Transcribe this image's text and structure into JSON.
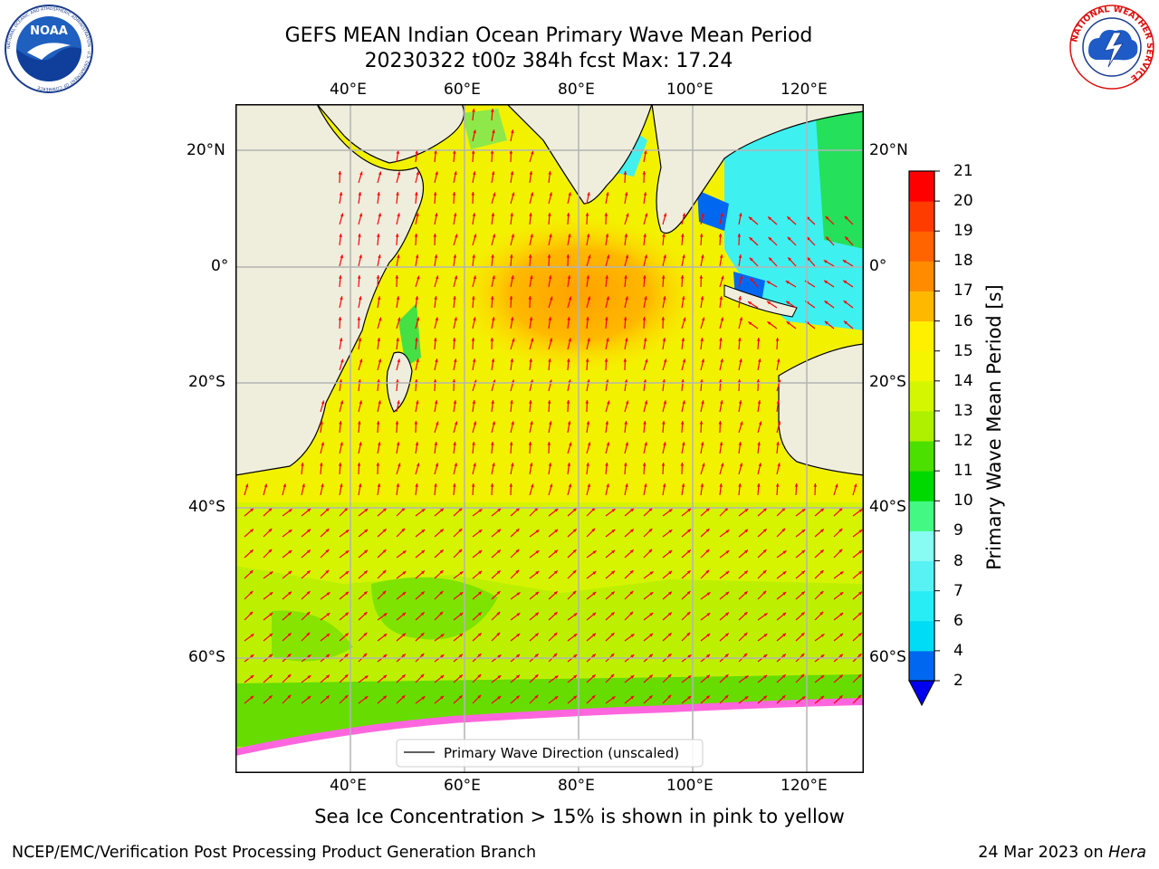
{
  "header": {
    "title_line1": "GEFS MEAN Indian Ocean Primary Wave Mean Period",
    "title_line2": "20230322 t00z 384h fcst   Max: 17.24"
  },
  "logos": {
    "left": {
      "name": "noaa-logo",
      "text": "NOAA",
      "ring_text": "NATIONAL OCEANIC AND ATMOSPHERIC ADMINISTRATION · U.S. DEPARTMENT OF COMMERCE"
    },
    "right": {
      "name": "nws-logo",
      "ring_text": "NATIONAL WEATHER SERVICE"
    }
  },
  "map": {
    "lon_ticks": [
      "40°E",
      "60°E",
      "80°E",
      "100°E",
      "120°E"
    ],
    "lat_ticks": [
      "20°N",
      "0°",
      "20°S",
      "40°S",
      "60°S"
    ],
    "legend_label": "Primary Wave Direction (unscaled)",
    "colors": {
      "land": "#efeddc",
      "arrow": "#ff0000",
      "grid": "#b4b4b4"
    }
  },
  "colorbar": {
    "label": "Primary Wave Mean Period [s]",
    "ticks": [
      "2",
      "4",
      "6",
      "7",
      "8",
      "9",
      "10",
      "11",
      "12",
      "13",
      "14",
      "15",
      "16",
      "17",
      "18",
      "19",
      "20",
      "21"
    ],
    "bins": [
      "#0068f0",
      "#00dcf5",
      "#29edf5",
      "#58f2f5",
      "#88fbf3",
      "#44f983",
      "#00d900",
      "#4be000",
      "#aef000",
      "#d4f700",
      "#f5f500",
      "#fff000",
      "#ffb800",
      "#ff8c00",
      "#ff6400",
      "#ff3c00",
      "#ff0000"
    ],
    "extend_color": "#0000ee"
  },
  "footer": {
    "sea_ice_note": "Sea Ice Concentration > 15% is shown in pink to yellow",
    "credit": "NCEP/EMC/Verification Post Processing Product Generation Branch",
    "date_prefix": "24 Mar 2023 on ",
    "date_machine": "Hera"
  }
}
